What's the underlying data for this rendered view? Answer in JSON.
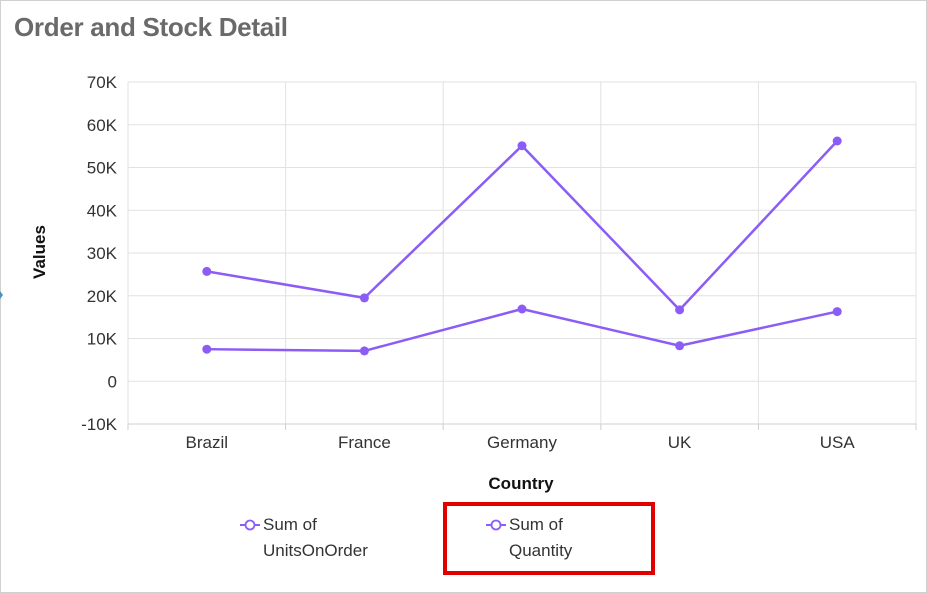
{
  "window": {
    "title": "Order and Stock Detail"
  },
  "chart_data": {
    "type": "line",
    "title": "Order and Stock Detail",
    "xlabel": "Country",
    "ylabel": "Values",
    "categories": [
      "Brazil",
      "France",
      "Germany",
      "UK",
      "USA"
    ],
    "ylim": [
      -10000,
      70000
    ],
    "yticks": [
      -10000,
      0,
      10000,
      20000,
      30000,
      40000,
      50000,
      60000,
      70000
    ],
    "ytick_labels": [
      "-10K",
      "0",
      "10K",
      "20K",
      "30K",
      "40K",
      "50K",
      "60K",
      "70K"
    ],
    "grid": true,
    "legend_position": "bottom",
    "series": [
      {
        "name": "Sum of UnitsOnOrder",
        "name_lines": [
          "Sum of",
          "UnitsOnOrder"
        ],
        "values": [
          7500,
          7100,
          16900,
          8300,
          16300
        ]
      },
      {
        "name": "Sum of Quantity",
        "name_lines": [
          "Sum of",
          "Quantity"
        ],
        "values": [
          25700,
          19500,
          55100,
          16700,
          56200
        ]
      }
    ],
    "colors": {
      "line": "#8b5cf6",
      "grid": "#e2e2e2",
      "highlight": "#e00000"
    },
    "highlighted_legend_item": "Sum of Quantity"
  }
}
